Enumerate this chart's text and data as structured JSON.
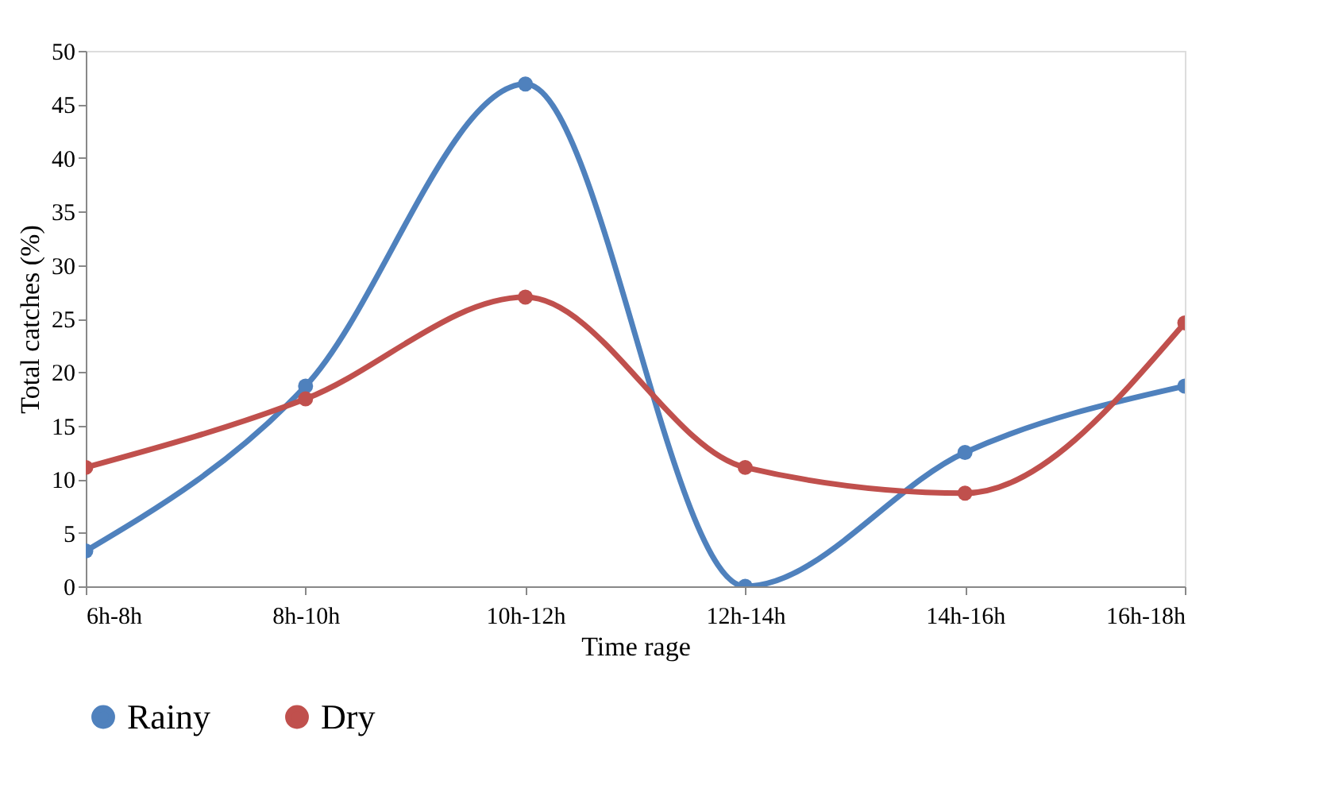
{
  "chart_data": {
    "type": "line",
    "xlabel": "Time rage",
    "ylabel": "Total catches (%)",
    "categories": [
      "6h-8h",
      "8h-10h",
      "10h-12h",
      "12h-14h",
      "14h-16h",
      "16h-18h"
    ],
    "series": [
      {
        "name": "Rainy",
        "color": "#4f81bd",
        "values": [
          3.3,
          18.7,
          46.9,
          0,
          12.5,
          18.7
        ]
      },
      {
        "name": "Dry",
        "color": "#c0504d",
        "values": [
          11.1,
          17.5,
          27,
          11.1,
          8.7,
          24.6
        ]
      }
    ],
    "ylim": [
      0,
      50
    ],
    "yticks": [
      0,
      5,
      10,
      15,
      20,
      25,
      30,
      35,
      40,
      45,
      50
    ],
    "grid": false,
    "legend": "bottom",
    "marker": "circle",
    "line_style": "solid"
  }
}
